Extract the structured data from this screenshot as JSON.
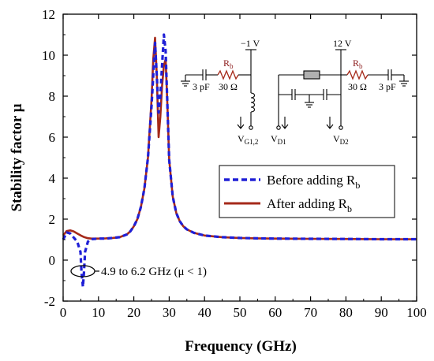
{
  "chart_data": {
    "type": "line",
    "xlabel": "Frequency (GHz)",
    "ylabel": "Stability factor μ",
    "xlim": [
      0,
      100
    ],
    "ylim": [
      -2,
      12
    ],
    "xticks": [
      0,
      10,
      20,
      30,
      40,
      50,
      60,
      70,
      80,
      90,
      100
    ],
    "yticks": [
      -2,
      0,
      2,
      4,
      6,
      8,
      10,
      12
    ],
    "grid": false,
    "legend_position": "center-right",
    "series": [
      {
        "name": "Before adding R",
        "name_subscript": "b",
        "color": "#1f1fd6",
        "style": "dashed",
        "x": [
          0,
          1,
          2,
          3,
          4,
          4.9,
          5.2,
          5.6,
          5.9,
          6.2,
          7,
          8,
          10,
          12,
          14,
          16,
          18,
          19,
          20,
          21,
          22,
          23,
          24,
          25,
          25.5,
          26,
          26.5,
          27,
          27.5,
          28,
          28.5,
          29,
          29.5,
          30,
          31,
          32,
          33,
          34,
          35,
          37,
          40,
          45,
          50,
          55,
          60,
          70,
          80,
          90,
          100
        ],
        "y": [
          1.0,
          1.35,
          1.3,
          1.1,
          0.9,
          0.4,
          -0.6,
          -1.3,
          -0.6,
          0.4,
          0.9,
          1.02,
          1.05,
          1.05,
          1.08,
          1.12,
          1.25,
          1.4,
          1.65,
          2.0,
          2.6,
          3.5,
          5.0,
          7.5,
          9.0,
          10.6,
          9.0,
          7.2,
          8.0,
          9.5,
          11.0,
          10.2,
          7.5,
          4.9,
          3.1,
          2.3,
          1.9,
          1.65,
          1.5,
          1.33,
          1.2,
          1.12,
          1.08,
          1.06,
          1.05,
          1.04,
          1.03,
          1.02,
          1.02
        ]
      },
      {
        "name": "After adding R",
        "name_subscript": "b",
        "color": "#a52a1a",
        "style": "solid",
        "x": [
          0,
          1,
          2,
          3,
          4,
          5,
          6,
          7,
          8,
          10,
          12,
          14,
          16,
          18,
          19,
          20,
          21,
          22,
          23,
          24,
          25,
          25.5,
          26,
          26.5,
          27,
          27.5,
          28,
          28.5,
          29,
          29.5,
          30,
          31,
          32,
          33,
          34,
          35,
          37,
          40,
          45,
          50,
          55,
          60,
          70,
          80,
          90,
          100
        ],
        "y": [
          1.2,
          1.42,
          1.45,
          1.4,
          1.3,
          1.2,
          1.12,
          1.07,
          1.05,
          1.05,
          1.06,
          1.08,
          1.12,
          1.25,
          1.4,
          1.65,
          2.0,
          2.6,
          3.5,
          5.0,
          7.8,
          9.8,
          10.85,
          9.0,
          6.0,
          7.0,
          8.5,
          9.5,
          9.8,
          7.5,
          4.9,
          3.1,
          2.3,
          1.9,
          1.65,
          1.5,
          1.33,
          1.2,
          1.12,
          1.08,
          1.06,
          1.05,
          1.04,
          1.03,
          1.02,
          1.02
        ]
      }
    ],
    "annotations": [
      {
        "text": "4.9 to 6.2 GHz (μ < 1)",
        "x": 12,
        "y": -1.0
      }
    ]
  },
  "inset_circuit": {
    "labels": {
      "left_supply": "−1 V",
      "left_rb": "R",
      "left_rb_sub": "b",
      "left_res": "30 Ω",
      "left_cap": "3 pF",
      "vg": "V",
      "vg_sub": "G1,2",
      "right_supply": "12 V",
      "right_rb": "R",
      "right_rb_sub": "b",
      "right_res": "30 Ω",
      "right_cap": "3 pF",
      "vd1": "V",
      "vd1_sub": "D1",
      "vd2": "V",
      "vd2_sub": "D2"
    }
  }
}
